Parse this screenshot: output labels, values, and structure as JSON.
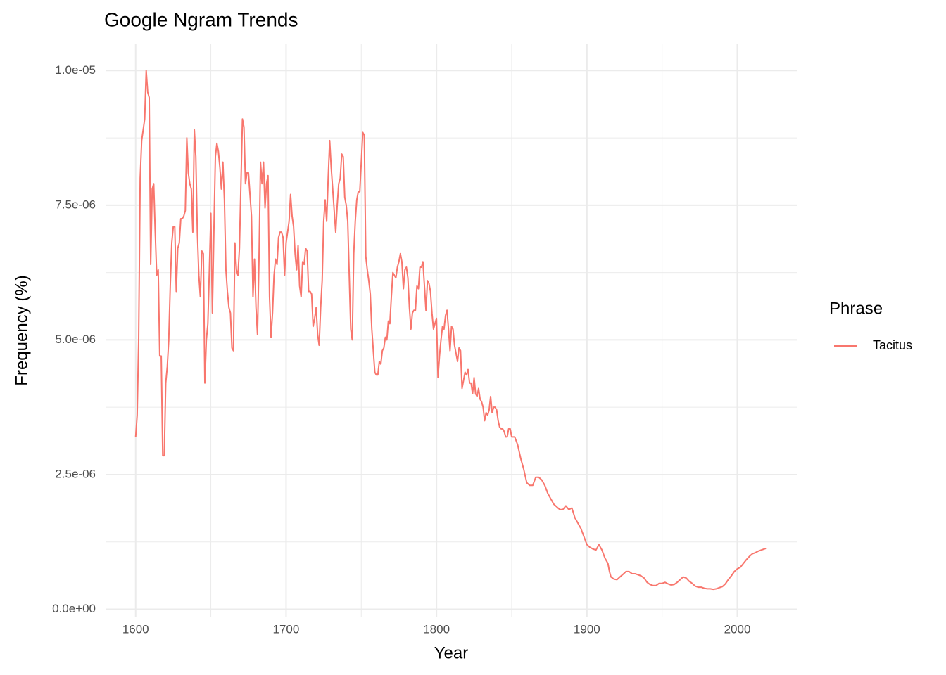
{
  "chart_data": {
    "type": "line",
    "title": "Google Ngram Trends",
    "x_label": "Year",
    "y_label": "Frequency (%)",
    "legend_title": "Phrase",
    "legend_position": "right",
    "grid": true,
    "xlim": [
      1580,
      2040
    ],
    "xticks": [
      1600,
      1700,
      1800,
      1900,
      2000
    ],
    "ylim": [
      -1.5e-07,
      1.05e-05
    ],
    "yticks": [
      {
        "value": 0,
        "label": "0.0e+00"
      },
      {
        "value": 2.5e-06,
        "label": "2.5e-06"
      },
      {
        "value": 5e-06,
        "label": "5.0e-06"
      },
      {
        "value": 7.5e-06,
        "label": "7.5e-06"
      },
      {
        "value": 1e-05,
        "label": "1.0e-05"
      }
    ],
    "x": [
      1600,
      1601,
      1602,
      1603,
      1604,
      1605,
      1606,
      1607,
      1608,
      1609,
      1610,
      1611,
      1612,
      1613,
      1614,
      1615,
      1616,
      1617,
      1618,
      1619,
      1620,
      1621,
      1622,
      1623,
      1624,
      1625,
      1626,
      1627,
      1628,
      1629,
      1630,
      1631,
      1632,
      1633,
      1634,
      1635,
      1636,
      1637,
      1638,
      1639,
      1640,
      1641,
      1642,
      1643,
      1644,
      1645,
      1646,
      1647,
      1648,
      1649,
      1650,
      1651,
      1652,
      1653,
      1654,
      1655,
      1656,
      1657,
      1658,
      1659,
      1660,
      1661,
      1662,
      1663,
      1664,
      1665,
      1666,
      1667,
      1668,
      1669,
      1670,
      1671,
      1672,
      1673,
      1674,
      1675,
      1676,
      1677,
      1678,
      1679,
      1680,
      1681,
      1682,
      1683,
      1684,
      1685,
      1686,
      1687,
      1688,
      1689,
      1690,
      1691,
      1692,
      1693,
      1694,
      1695,
      1696,
      1697,
      1698,
      1699,
      1700,
      1701,
      1702,
      1703,
      1704,
      1705,
      1706,
      1707,
      1708,
      1709,
      1710,
      1711,
      1712,
      1713,
      1714,
      1715,
      1716,
      1717,
      1718,
      1719,
      1720,
      1721,
      1722,
      1723,
      1724,
      1725,
      1726,
      1727,
      1728,
      1729,
      1730,
      1731,
      1732,
      1733,
      1734,
      1735,
      1736,
      1737,
      1738,
      1739,
      1740,
      1741,
      1742,
      1743,
      1744,
      1745,
      1746,
      1747,
      1748,
      1749,
      1750,
      1751,
      1752,
      1753,
      1754,
      1755,
      1756,
      1757,
      1758,
      1759,
      1760,
      1761,
      1762,
      1763,
      1764,
      1765,
      1766,
      1767,
      1768,
      1769,
      1770,
      1771,
      1772,
      1773,
      1774,
      1775,
      1776,
      1777,
      1778,
      1779,
      1780,
      1781,
      1782,
      1783,
      1784,
      1785,
      1786,
      1787,
      1788,
      1789,
      1790,
      1791,
      1792,
      1793,
      1794,
      1795,
      1796,
      1797,
      1798,
      1799,
      1800,
      1801,
      1802,
      1803,
      1804,
      1805,
      1806,
      1807,
      1808,
      1809,
      1810,
      1811,
      1812,
      1813,
      1814,
      1815,
      1816,
      1817,
      1818,
      1819,
      1820,
      1821,
      1822,
      1823,
      1824,
      1825,
      1826,
      1827,
      1828,
      1829,
      1830,
      1831,
      1832,
      1833,
      1834,
      1835,
      1836,
      1837,
      1838,
      1839,
      1840,
      1841,
      1842,
      1843,
      1844,
      1845,
      1846,
      1847,
      1848,
      1849,
      1850,
      1852,
      1854,
      1856,
      1858,
      1860,
      1862,
      1864,
      1866,
      1868,
      1870,
      1872,
      1874,
      1876,
      1878,
      1880,
      1882,
      1884,
      1886,
      1888,
      1890,
      1892,
      1894,
      1896,
      1898,
      1900,
      1902,
      1904,
      1906,
      1908,
      1910,
      1912,
      1914,
      1915,
      1916,
      1918,
      1920,
      1922,
      1924,
      1926,
      1928,
      1930,
      1932,
      1934,
      1936,
      1938,
      1940,
      1942,
      1944,
      1946,
      1948,
      1950,
      1952,
      1954,
      1956,
      1958,
      1960,
      1962,
      1964,
      1966,
      1968,
      1970,
      1972,
      1974,
      1976,
      1978,
      1980,
      1982,
      1984,
      1986,
      1988,
      1990,
      1992,
      1994,
      1996,
      1998,
      2000,
      2002,
      2004,
      2006,
      2008,
      2010,
      2012,
      2014,
      2016,
      2018,
      2019
    ],
    "series": [
      {
        "name": "Tacitus",
        "color": "#F8766D",
        "values": [
          3.2e-06,
          3.6e-06,
          5e-06,
          8e-06,
          8.7e-06,
          8.9e-06,
          9.1e-06,
          1e-05,
          9.6e-06,
          9.5e-06,
          6.4e-06,
          7.8e-06,
          7.9e-06,
          7e-06,
          6.2e-06,
          6.3e-06,
          4.7e-06,
          4.7e-06,
          2.85e-06,
          2.85e-06,
          4.2e-06,
          4.5e-06,
          5e-06,
          6e-06,
          6.8e-06,
          7.1e-06,
          7.1e-06,
          5.9e-06,
          6.7e-06,
          6.8e-06,
          7.25e-06,
          7.25e-06,
          7.3e-06,
          7.4e-06,
          8.75e-06,
          8.1e-06,
          7.9e-06,
          7.8e-06,
          7e-06,
          8.9e-06,
          8.4e-06,
          7e-06,
          6.2e-06,
          5.8e-06,
          6.65e-06,
          6.6e-06,
          4.2e-06,
          5e-06,
          5.3e-06,
          6.3e-06,
          7.35e-06,
          5.5e-06,
          7e-06,
          8.4e-06,
          8.65e-06,
          8.5e-06,
          8.2e-06,
          7.8e-06,
          8.3e-06,
          7.6e-06,
          6.3e-06,
          5.9e-06,
          5.6e-06,
          5.5e-06,
          4.85e-06,
          4.8e-06,
          6.8e-06,
          6.3e-06,
          6.2e-06,
          6.7e-06,
          7.9e-06,
          9.1e-06,
          8.95e-06,
          7.9e-06,
          8.1e-06,
          8.1e-06,
          7.7e-06,
          7.3e-06,
          5.8e-06,
          6.5e-06,
          5.6e-06,
          5.1e-06,
          6.5e-06,
          8.3e-06,
          7.9e-06,
          8.3e-06,
          7.45e-06,
          7.9e-06,
          8.05e-06,
          5.8e-06,
          5.05e-06,
          5.5e-06,
          6.2e-06,
          6.5e-06,
          6.4e-06,
          6.9e-06,
          7e-06,
          7e-06,
          6.9e-06,
          6.2e-06,
          6.8e-06,
          7e-06,
          7.2e-06,
          7.7e-06,
          7.3e-06,
          7.1e-06,
          6.6e-06,
          6.3e-06,
          6.75e-06,
          6e-06,
          5.8e-06,
          6.45e-06,
          6.4e-06,
          6.7e-06,
          6.65e-06,
          5.9e-06,
          5.9e-06,
          5.85e-06,
          5.25e-06,
          5.4e-06,
          5.6e-06,
          5.1e-06,
          4.9e-06,
          5.6e-06,
          6.1e-06,
          7.2e-06,
          7.6e-06,
          7.2e-06,
          8e-06,
          8.7e-06,
          8.2e-06,
          7.8e-06,
          7.4e-06,
          7e-06,
          7.5e-06,
          7.9e-06,
          8e-06,
          8.45e-06,
          8.4e-06,
          7.65e-06,
          7.5e-06,
          7.2e-06,
          6.2e-06,
          5.2e-06,
          5e-06,
          6.6e-06,
          7.2e-06,
          7.6e-06,
          7.75e-06,
          7.75e-06,
          8.3e-06,
          8.85e-06,
          8.8e-06,
          6.55e-06,
          6.3e-06,
          6.1e-06,
          5.85e-06,
          5.2e-06,
          4.8e-06,
          4.4e-06,
          4.35e-06,
          4.35e-06,
          4.6e-06,
          4.55e-06,
          4.8e-06,
          4.85e-06,
          5.05e-06,
          5e-06,
          5.35e-06,
          5.3e-06,
          5.8e-06,
          6.25e-06,
          6.2e-06,
          6.15e-06,
          6.35e-06,
          6.45e-06,
          6.6e-06,
          6.45e-06,
          5.95e-06,
          6.3e-06,
          6.35e-06,
          6.15e-06,
          5.6e-06,
          5.2e-06,
          5.5e-06,
          5.55e-06,
          5.55e-06,
          6e-06,
          5.95e-06,
          6.35e-06,
          6.35e-06,
          6.45e-06,
          6e-06,
          5.55e-06,
          6.1e-06,
          6.05e-06,
          5.9e-06,
          5.5e-06,
          5.2e-06,
          5.3e-06,
          5.4e-06,
          4.3e-06,
          4.7e-06,
          5e-06,
          5.25e-06,
          5.2e-06,
          5.45e-06,
          5.55e-06,
          5.2e-06,
          4.8e-06,
          5.25e-06,
          5.2e-06,
          4.9e-06,
          4.75e-06,
          4.6e-06,
          4.85e-06,
          4.8e-06,
          4.1e-06,
          4.25e-06,
          4.4e-06,
          4.35e-06,
          4.45e-06,
          4.2e-06,
          4.2e-06,
          4e-06,
          4.3e-06,
          4e-06,
          3.95e-06,
          4.1e-06,
          3.9e-06,
          3.85e-06,
          3.75e-06,
          3.5e-06,
          3.65e-06,
          3.6e-06,
          3.7e-06,
          3.95e-06,
          3.65e-06,
          3.75e-06,
          3.75e-06,
          3.7e-06,
          3.5e-06,
          3.38e-06,
          3.35e-06,
          3.35e-06,
          3.3e-06,
          3.2e-06,
          3.2e-06,
          3.35e-06,
          3.35e-06,
          3.2e-06,
          3.2e-06,
          3.05e-06,
          2.8e-06,
          2.6e-06,
          2.35e-06,
          2.3e-06,
          2.3e-06,
          2.45e-06,
          2.45e-06,
          2.4e-06,
          2.3e-06,
          2.15e-06,
          2.05e-06,
          1.95e-06,
          1.9e-06,
          1.85e-06,
          1.85e-06,
          1.92e-06,
          1.85e-06,
          1.88e-06,
          1.7e-06,
          1.6e-06,
          1.5e-06,
          1.35e-06,
          1.2e-06,
          1.15e-06,
          1.12e-06,
          1.1e-06,
          1.2e-06,
          1.1e-06,
          9.5e-07,
          8.5e-07,
          7e-07,
          6e-07,
          5.6e-07,
          5.5e-07,
          6e-07,
          6.5e-07,
          7e-07,
          7e-07,
          6.6e-07,
          6.6e-07,
          6.4e-07,
          6.2e-07,
          5.8e-07,
          5e-07,
          4.6e-07,
          4.4e-07,
          4.4e-07,
          4.8e-07,
          4.8e-07,
          5e-07,
          4.7e-07,
          4.5e-07,
          4.6e-07,
          5e-07,
          5.5e-07,
          6e-07,
          5.8e-07,
          5.2e-07,
          4.8e-07,
          4.3e-07,
          4.1e-07,
          4.1e-07,
          3.9e-07,
          3.8e-07,
          3.8e-07,
          3.7e-07,
          3.8e-07,
          4e-07,
          4.2e-07,
          4.7e-07,
          5.5e-07,
          6.2e-07,
          7e-07,
          7.5e-07,
          7.8e-07,
          8.5e-07,
          9.2e-07,
          9.8e-07,
          1.03e-06,
          1.05e-06,
          1.08e-06,
          1.1e-06,
          1.12e-06,
          1.13e-06
        ]
      }
    ]
  }
}
